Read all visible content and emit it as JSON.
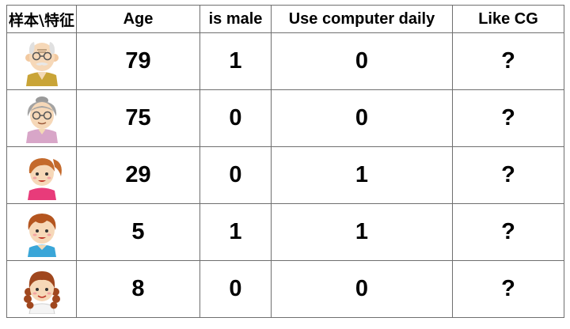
{
  "table": {
    "headers": [
      "样本\\特征",
      "Age",
      "is male",
      "Use computer daily",
      "Like CG"
    ],
    "rows": [
      {
        "avatar": "elderly-man-avatar-icon",
        "age": "79",
        "is_male": "1",
        "use_computer_daily": "0",
        "like_cg": "?"
      },
      {
        "avatar": "elderly-woman-avatar-icon",
        "age": "75",
        "is_male": "0",
        "use_computer_daily": "0",
        "like_cg": "?"
      },
      {
        "avatar": "young-woman-ponytail-avatar-icon",
        "age": "29",
        "is_male": "0",
        "use_computer_daily": "1",
        "like_cg": "?"
      },
      {
        "avatar": "boy-avatar-icon",
        "age": "5",
        "is_male": "1",
        "use_computer_daily": "1",
        "like_cg": "?"
      },
      {
        "avatar": "girl-curly-hair-avatar-icon",
        "age": "8",
        "is_male": "0",
        "use_computer_daily": "0",
        "like_cg": "?"
      }
    ]
  }
}
